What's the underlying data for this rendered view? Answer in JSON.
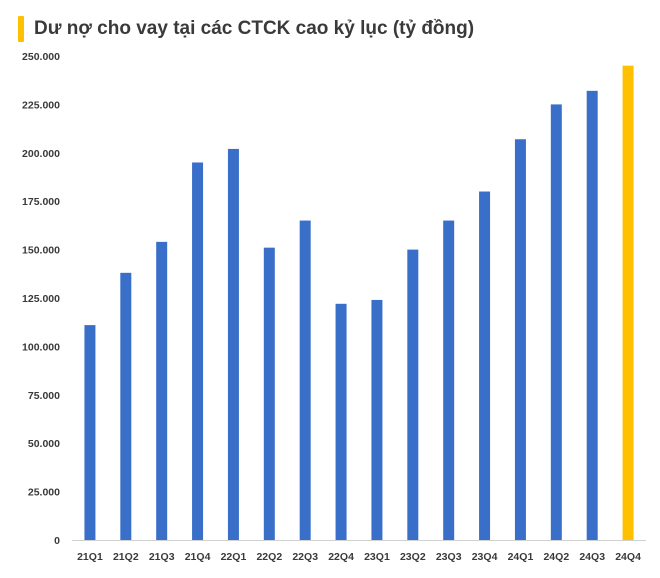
{
  "colors": {
    "bar": "#3A6FC9",
    "highlight": "#FFC000",
    "title_accent": "#FFC000",
    "text": "#3A3A3A",
    "axis": "#D0D0D0"
  },
  "chart_data": {
    "type": "bar",
    "title": "Dư nợ cho vay tại các CTCK cao kỷ lục (tỷ đồng)",
    "xlabel": "",
    "ylabel": "",
    "ylim": [
      0,
      250000
    ],
    "grid": false,
    "legend": "none",
    "highlight_category": "24Q4",
    "categories": [
      "21Q1",
      "21Q2",
      "21Q3",
      "21Q4",
      "22Q1",
      "22Q2",
      "22Q3",
      "22Q4",
      "23Q1",
      "23Q2",
      "23Q3",
      "23Q4",
      "24Q1",
      "24Q2",
      "24Q3",
      "24Q4"
    ],
    "values": [
      111000,
      138000,
      154000,
      195000,
      202000,
      151000,
      165000,
      122000,
      124000,
      150000,
      165000,
      180000,
      207000,
      225000,
      232000,
      245000
    ],
    "y_ticks": [
      0,
      25000,
      50000,
      75000,
      100000,
      125000,
      150000,
      175000,
      200000,
      225000,
      250000
    ],
    "y_tick_labels": [
      "0",
      "25.000",
      "50.000",
      "75.000",
      "100.000",
      "125.000",
      "150.000",
      "175.000",
      "200.000",
      "225.000",
      "250.000"
    ]
  }
}
